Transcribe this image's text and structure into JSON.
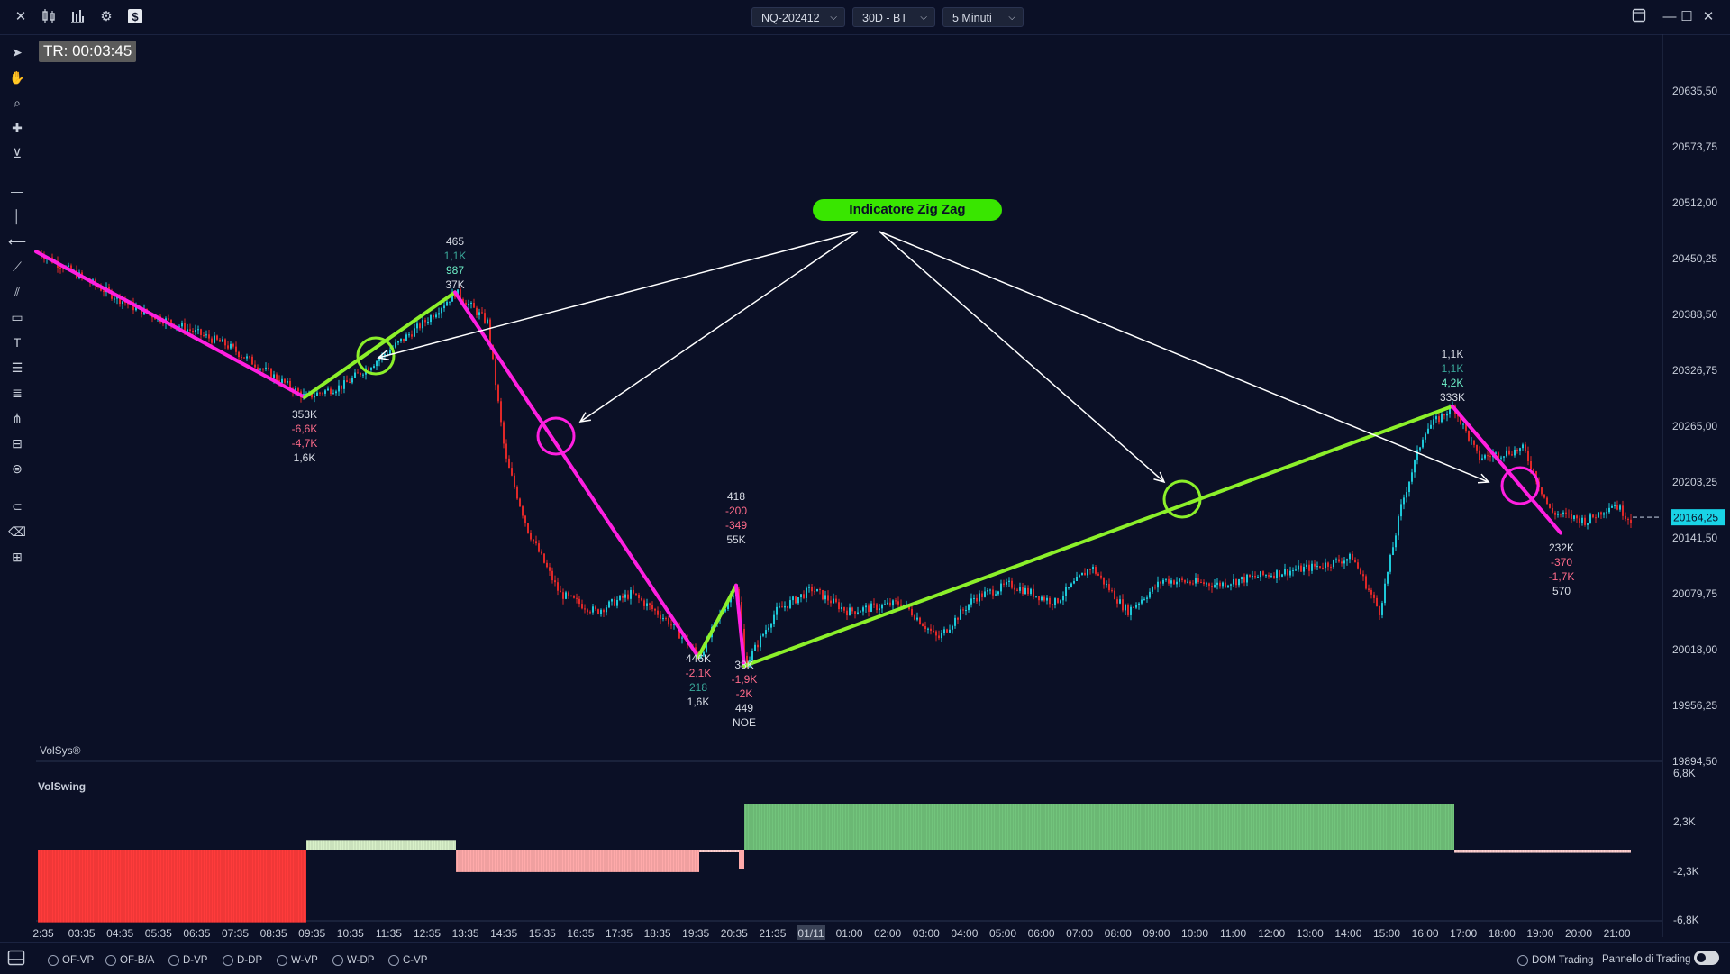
{
  "window": {
    "symbol": "NQ-202412",
    "range": "30D - BT",
    "timeframe": "5 Minuti"
  },
  "timer": "TR: 00:03:45",
  "annotation_label": "Indicatore Zig Zag",
  "brand": "VolSys®",
  "subpanel_title": "VolSwing",
  "price_axis": [
    "20635,50",
    "20573,75",
    "20512,00",
    "20450,25",
    "20388,50",
    "20326,75",
    "20265,00",
    "20203,25",
    "20141,50",
    "20079,75",
    "20018,00",
    "19956,25",
    "19894,50"
  ],
  "current_price": "20164,25",
  "volswing_axis": [
    "6,8K",
    "2,3K",
    "-2,3K",
    "-6,8K"
  ],
  "time_axis": [
    "2:35",
    "03:35",
    "04:35",
    "05:35",
    "06:35",
    "07:35",
    "08:35",
    "09:35",
    "10:35",
    "11:35",
    "12:35",
    "13:35",
    "14:35",
    "15:35",
    "16:35",
    "17:35",
    "18:35",
    "19:35",
    "20:35",
    "21:35",
    "01/11",
    "01:00",
    "02:00",
    "03:00",
    "04:00",
    "05:00",
    "06:00",
    "07:00",
    "08:00",
    "09:00",
    "10:00",
    "11:00",
    "12:00",
    "13:00",
    "14:00",
    "15:00",
    "16:00",
    "17:00",
    "18:00",
    "19:00",
    "20:00",
    "21:00"
  ],
  "highlighted_time": "01/11",
  "pivot_stats": [
    {
      "lines": [
        "353K",
        "-6,6K",
        "-4,7K",
        "1,6K"
      ],
      "colors": [
        "#d9dde6",
        "#ff6b8a",
        "#ff6b8a",
        "#d9dde6"
      ]
    },
    {
      "lines": [
        "465",
        "1,1K",
        "987",
        "37K"
      ],
      "colors": [
        "#d9dde6",
        "#3aa89a",
        "#6ef0c8",
        "#d9dde6"
      ]
    },
    {
      "lines": [
        "446K",
        "-2,1K",
        "218",
        "1,6K"
      ],
      "colors": [
        "#d9dde6",
        "#ff6b8a",
        "#3aa89a",
        "#d9dde6"
      ]
    },
    {
      "lines": [
        "418",
        "-200",
        "-349",
        "55K"
      ],
      "colors": [
        "#d9dde6",
        "#ff6b8a",
        "#ff6b8a",
        "#d9dde6"
      ]
    },
    {
      "lines": [
        "38K",
        "-1,9K",
        "-2K",
        "449",
        "NOE"
      ],
      "colors": [
        "#d9dde6",
        "#ff6b8a",
        "#ff6b8a",
        "#d9dde6",
        "#d9dde6"
      ]
    },
    {
      "lines": [
        "1,1K",
        "1,1K",
        "4,2K",
        "333K"
      ],
      "colors": [
        "#d9dde6",
        "#3aa89a",
        "#6ef0c8",
        "#d9dde6"
      ]
    },
    {
      "lines": [
        "232K",
        "-370",
        "-1,7K",
        "570"
      ],
      "colors": [
        "#d9dde6",
        "#ff6b8a",
        "#ff6b8a",
        "#d9dde6"
      ]
    }
  ],
  "zigzag": {
    "legs_price": [
      {
        "from": 20458,
        "to": 20297,
        "dir": "down"
      },
      {
        "from": 20297,
        "to": 20413,
        "dir": "up"
      },
      {
        "from": 20413,
        "to": 20010,
        "dir": "down"
      },
      {
        "from": 20010,
        "to": 20089,
        "dir": "up"
      },
      {
        "from": 20089,
        "to": 20000,
        "dir": "down"
      },
      {
        "from": 20000,
        "to": 20287,
        "dir": "up"
      },
      {
        "from": 20287,
        "to": 20147,
        "dir": "down"
      }
    ],
    "colors": {
      "up": "#8cf02a",
      "down": "#ff1fe0"
    }
  },
  "volswing_blocks": [
    {
      "value": -6.8,
      "color": "#ff3b3b"
    },
    {
      "value": 0.9,
      "color": "#d8f0c8"
    },
    {
      "value": -2.1,
      "color": "#ffaaaa"
    },
    {
      "value": -0.2,
      "color": "#ffd0d0"
    },
    {
      "value": 4.3,
      "color": "#72c47c"
    },
    {
      "value": -0.3,
      "color": "#ffd0d0"
    }
  ],
  "footer": {
    "studies": [
      "OF-VP",
      "OF-B/A",
      "D-VP",
      "D-DP",
      "W-VP",
      "W-DP",
      "C-VP"
    ],
    "dom_trading": "DOM Trading",
    "panel_label": "Pannello di Trading"
  },
  "colors": {
    "background": "#0b1026",
    "bull_candle": "#1ec8d8",
    "bear_candle": "#e02828",
    "price_tag": "#19d3e6"
  }
}
